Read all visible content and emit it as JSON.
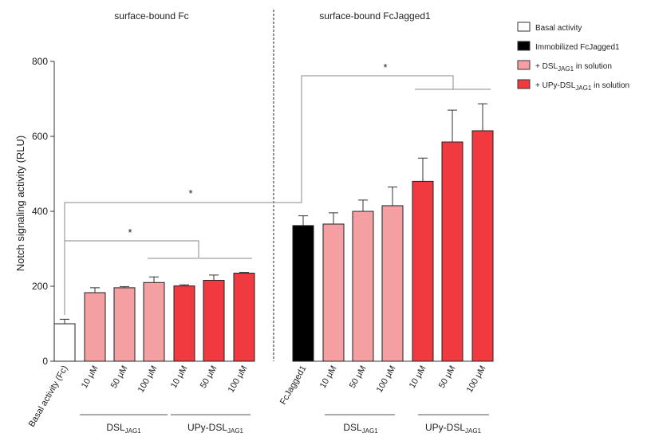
{
  "chart_data": {
    "type": "bar",
    "ylabel": "Notch signaling activity (RLU)",
    "ylim": [
      0,
      800
    ],
    "yticks": [
      0,
      200,
      400,
      600,
      800
    ],
    "panels": [
      {
        "title": "surface-bound Fc"
      },
      {
        "title": "surface-bound FcJagged1"
      }
    ],
    "categories": [
      "Basal activity (Fc)",
      "10 μM",
      "50 μM",
      "100 μM",
      "10 μM",
      "50 μM",
      "100 μM",
      "FcJagged1",
      "10 μM",
      "50 μM",
      "100 μM",
      "10 μM",
      "50 μM",
      "100 μM"
    ],
    "values": [
      100,
      183,
      196,
      210,
      201,
      216,
      235,
      362,
      366,
      400,
      415,
      480,
      585,
      615
    ],
    "errors": [
      12,
      13,
      3,
      15,
      3,
      14,
      2,
      26,
      30,
      30,
      50,
      62,
      85,
      72
    ],
    "groups": [
      "basal",
      "dsl",
      "dsl",
      "dsl",
      "upy",
      "upy",
      "upy",
      "immob",
      "dsl",
      "dsl",
      "dsl",
      "upy",
      "upy",
      "upy"
    ],
    "group_labels": [
      {
        "base": "DSL",
        "sub": "JAG1"
      },
      {
        "base": "UPy-DSL",
        "sub": "JAG1"
      },
      {
        "base": "DSL",
        "sub": "JAG1"
      },
      {
        "base": "UPy-DSL",
        "sub": "JAG1"
      }
    ],
    "legend": [
      {
        "key": "basal",
        "label": "Basal activity"
      },
      {
        "key": "immob",
        "label": "Immobilized FcJagged1"
      },
      {
        "key": "dsl",
        "prefix": " + DSL",
        "sub": "JAG1",
        "suffix": " in solution"
      },
      {
        "key": "upy",
        "prefix": " + UPy-DSL",
        "sub": "JAG1",
        "suffix": " in solution"
      }
    ],
    "legend_position": "top-right",
    "colors": {
      "basal": "#ffffff",
      "immob": "#000000",
      "dsl": "#f4a0a3",
      "upy": "#f03a3f"
    },
    "significance_marker": "*"
  }
}
